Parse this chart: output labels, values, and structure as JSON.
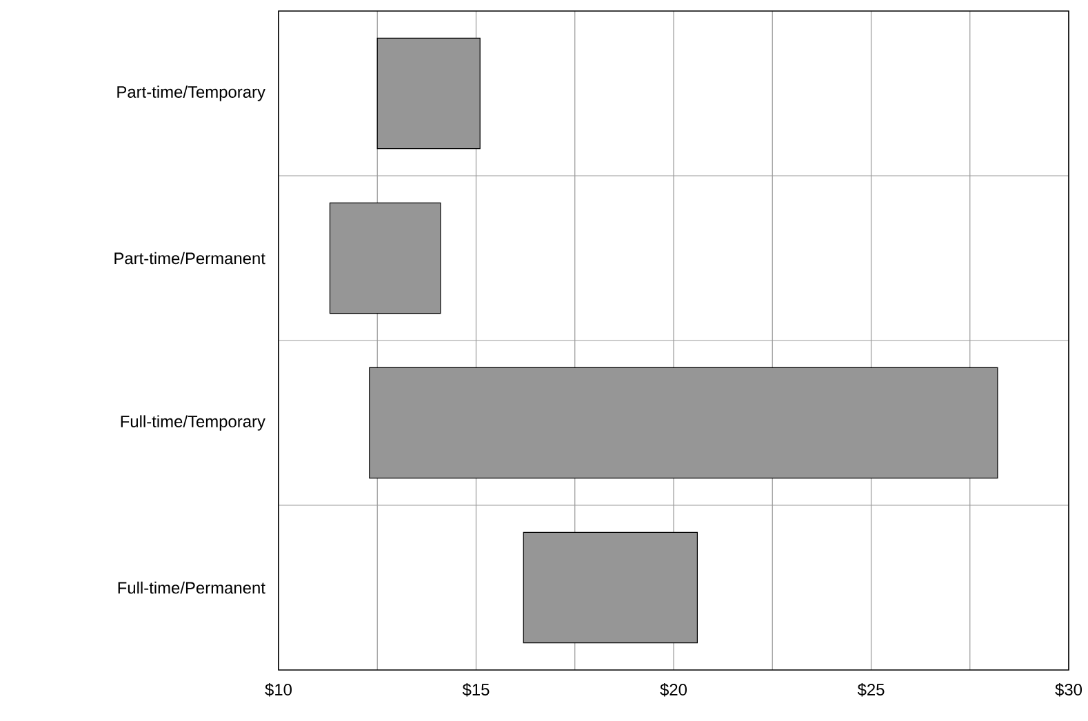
{
  "chart_data": {
    "type": "bar",
    "orientation": "horizontal",
    "categories": [
      "Part-time/Temporary",
      "Part-time/Permanent",
      "Full-time/Temporary",
      "Full-time/Permanent"
    ],
    "base": [
      12.5,
      11.3,
      12.3,
      16.2
    ],
    "values": [
      2.6,
      2.8,
      15.9,
      4.4
    ],
    "color": "#969696",
    "grid": true,
    "xlim": [
      10,
      30
    ],
    "xticks": [
      {
        "value": 10,
        "label": "$10"
      },
      {
        "value": 12.5,
        "label": null
      },
      {
        "value": 15,
        "label": "$15"
      },
      {
        "value": 17.5,
        "label": null
      },
      {
        "value": 20,
        "label": "$20"
      },
      {
        "value": 22.5,
        "label": null
      },
      {
        "value": 25,
        "label": "$25"
      },
      {
        "value": 27.5,
        "label": null
      },
      {
        "value": 30,
        "label": "$30"
      }
    ]
  }
}
